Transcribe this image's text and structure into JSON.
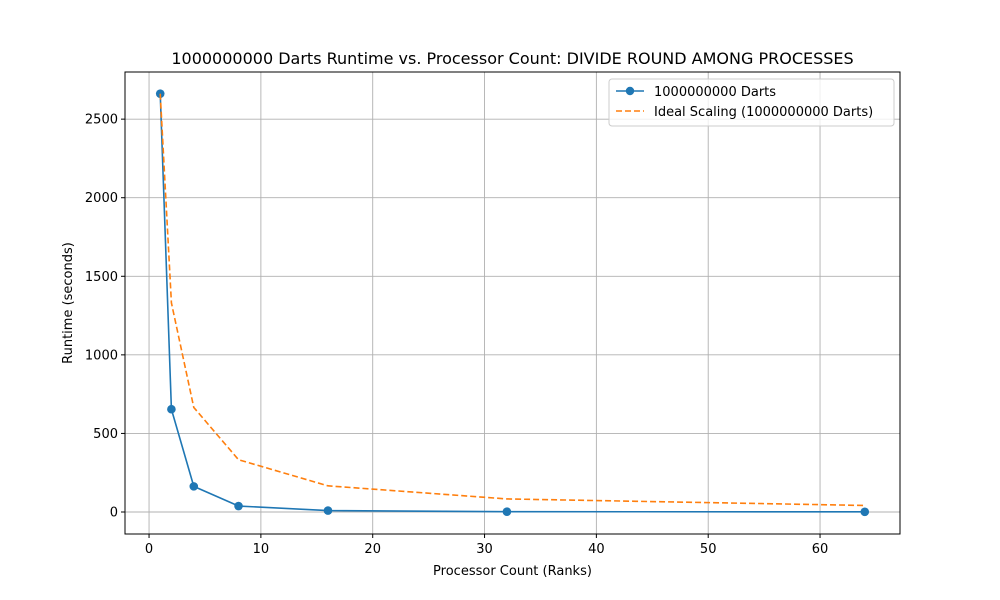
{
  "chart_data": {
    "type": "line",
    "title": "1000000000 Darts Runtime vs. Processor Count: DIVIDE ROUND AMONG PROCESSES",
    "xlabel": "Processor Count (Ranks)",
    "ylabel": "Runtime (seconds)",
    "xlim": [
      -2.15,
      67.15
    ],
    "ylim": [
      -140,
      2800
    ],
    "xticks": [
      0,
      10,
      20,
      30,
      40,
      50,
      60
    ],
    "xtick_labels": [
      "0",
      "10",
      "20",
      "30",
      "40",
      "50",
      "60"
    ],
    "yticks": [
      0,
      500,
      1000,
      1500,
      2000,
      2500
    ],
    "ytick_labels": [
      "0",
      "500",
      "1000",
      "1500",
      "2000",
      "2500"
    ],
    "grid": true,
    "legend_position": "top-right",
    "series": [
      {
        "name": "1000000000 Darts",
        "style": "solid-marker",
        "color": "#1f77b4",
        "x": [
          1,
          2,
          4,
          8,
          16,
          32,
          64
        ],
        "y": [
          2662,
          654,
          163,
          38,
          9,
          2,
          1
        ]
      },
      {
        "name": "Ideal Scaling (1000000000 Darts)",
        "style": "dashed",
        "color": "#ff7f0e",
        "x": [
          1,
          2,
          4,
          8,
          16,
          32,
          64
        ],
        "y": [
          2662,
          1331,
          665.5,
          332.75,
          166.4,
          83.2,
          41.6
        ]
      }
    ]
  }
}
